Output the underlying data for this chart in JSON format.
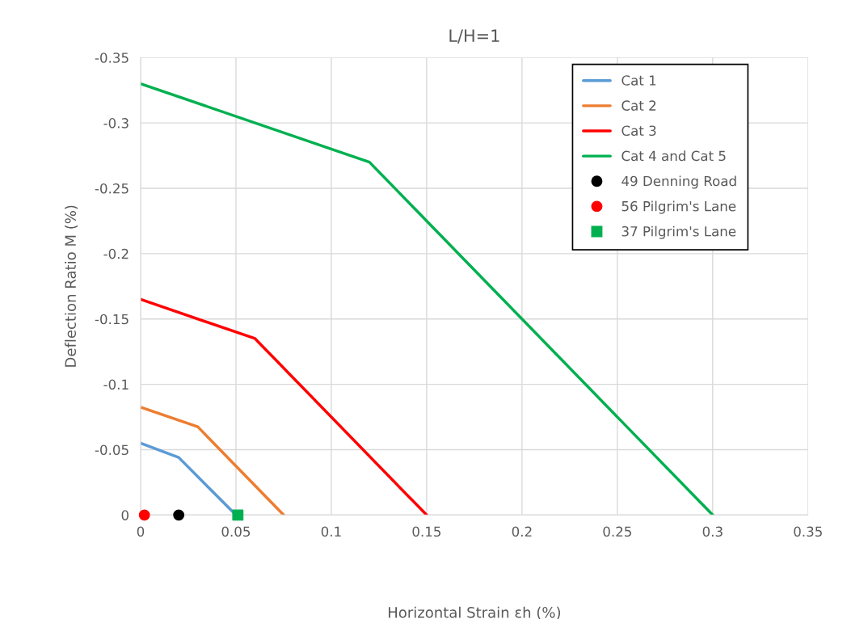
{
  "chart_data": {
    "type": "line",
    "title": "L/H=1",
    "xlabel": "Horizontal Strain εh (%)",
    "ylabel": "Deflection Ratio M (%)",
    "series": [
      {
        "name": "Cat 1",
        "color": "#5b9bd5",
        "x": [
          0,
          0.02,
          0.05
        ],
        "values": [
          -0.055,
          -0.044,
          0
        ]
      },
      {
        "name": "Cat 2",
        "color": "#ed7d31",
        "x": [
          0,
          0.03,
          0.075
        ],
        "values": [
          -0.0825,
          -0.0675,
          0
        ]
      },
      {
        "name": "Cat 3",
        "color": "#ff0000",
        "x": [
          0,
          0.06,
          0.15
        ],
        "values": [
          -0.165,
          -0.135,
          0
        ]
      },
      {
        "name": "Cat 4 and Cat 5",
        "color": "#00b050",
        "x": [
          0,
          0.12,
          0.3
        ],
        "values": [
          -0.33,
          -0.27,
          0
        ]
      },
      {
        "name": "49 Denning Road",
        "type": "scatter",
        "marker": "circle",
        "color": "#000000",
        "x": [
          0.02
        ],
        "values": [
          0
        ]
      },
      {
        "name": "56 Pilgrim's Lane",
        "type": "scatter",
        "marker": "circle",
        "color": "#ff0000",
        "x": [
          0.002
        ],
        "values": [
          0
        ]
      },
      {
        "name": "37 Pilgrim's Lane",
        "type": "scatter",
        "marker": "square",
        "color": "#00b050",
        "x": [
          0.051
        ],
        "values": [
          0
        ]
      }
    ],
    "xlim": [
      0,
      0.35
    ],
    "xticks": [
      0,
      0.05,
      0.1,
      0.15,
      0.2,
      0.25,
      0.3,
      0.35
    ],
    "ylim": [
      0,
      -0.35
    ],
    "yticks": [
      0,
      -0.05,
      -0.1,
      -0.15,
      -0.2,
      -0.25,
      -0.3,
      -0.35
    ],
    "grid": true,
    "legend": "top right"
  }
}
